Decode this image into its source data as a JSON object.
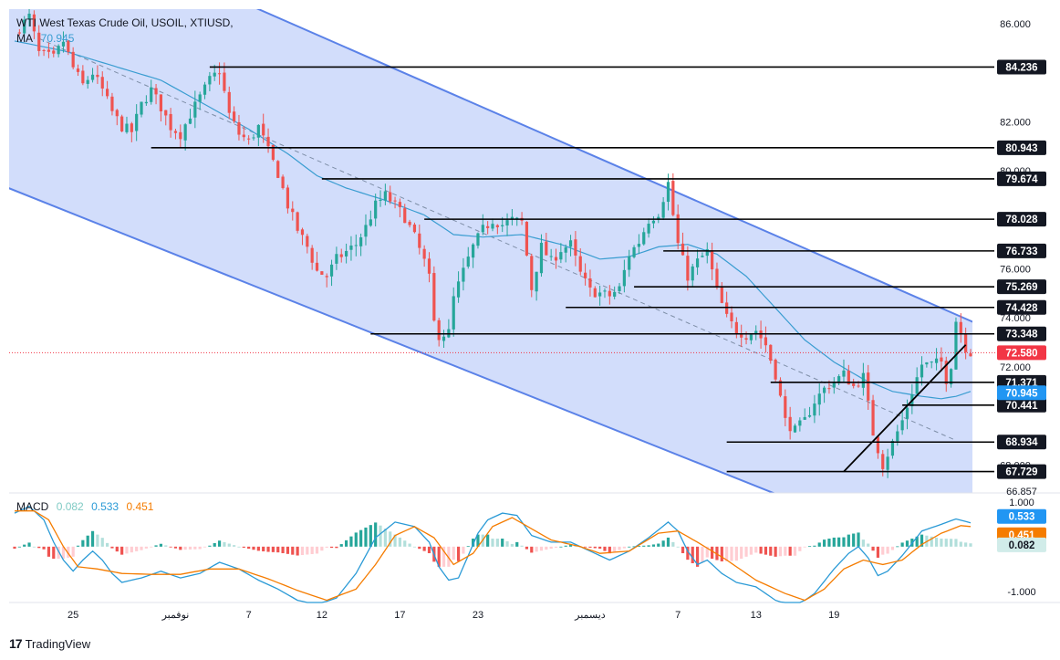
{
  "header": {
    "symbol": "WTI West Texas Crude Oil, USOIL, XTIUSD,",
    "ma_label": "MA",
    "ma_value": "70.945"
  },
  "macd_header": {
    "label": "MACD",
    "histogram": "0.082",
    "macd": "0.533",
    "signal": "0.451"
  },
  "footer": {
    "logo_text": "TradingView"
  },
  "colors": {
    "up": "#26a69a",
    "down": "#ef5350",
    "channel_fill": "#cdd9fb",
    "channel_line": "#5b82e8",
    "ma": "#3a9dd1",
    "macd_line": "#2a9ad6",
    "signal_line": "#f57c00",
    "hist_up_strong": "#26a69a",
    "hist_up_weak": "#b2dfdb",
    "hist_down_strong": "#ef5350",
    "hist_down_weak": "#ffcdd2",
    "price_tag": "#f23645"
  },
  "chart_data": [
    {
      "type": "candlestick",
      "symbol": "USOIL",
      "y_ticks": [
        "86.000",
        "82.000",
        "80.000",
        "76.000",
        "74.000",
        "72.000",
        "68.000"
      ],
      "ylim": [
        66.857,
        86.6
      ],
      "x_ticks": [
        "25",
        "نوفمبر",
        "7",
        "12",
        "17",
        "23",
        "ديسمبر",
        "7",
        "13",
        "19"
      ],
      "current_price": "72.580",
      "ma_value_label": "70.945",
      "bottom_clip_label": "66.857",
      "levels": [
        {
          "price": 84.236,
          "label": "84.236",
          "from_index": 40,
          "to_index": 205
        },
        {
          "price": 80.943,
          "label": "80.943",
          "from_index": 28,
          "to_index": 205
        },
        {
          "price": 79.674,
          "label": "79.674",
          "from_index": 63,
          "to_index": 205
        },
        {
          "price": 78.028,
          "label": "78.028",
          "from_index": 84,
          "to_index": 205
        },
        {
          "price": 76.733,
          "label": "76.733",
          "from_index": 133,
          "to_index": 205
        },
        {
          "price": 75.269,
          "label": "75.269",
          "from_index": 127,
          "to_index": 205
        },
        {
          "price": 74.428,
          "label": "74.428",
          "from_index": 113,
          "to_index": 205
        },
        {
          "price": 73.348,
          "label": "73.348",
          "from_index": 73,
          "to_index": 205
        },
        {
          "price": 71.371,
          "label": "71.371",
          "from_index": 155,
          "to_index": 205
        },
        {
          "price": 70.441,
          "label": "70.441",
          "from_index": 182,
          "to_index": 205
        },
        {
          "price": 68.934,
          "label": "68.934",
          "from_index": 146,
          "to_index": 205
        },
        {
          "price": 67.729,
          "label": "67.729",
          "from_index": 146,
          "to_index": 205
        }
      ],
      "channel": {
        "upper": [
          [
            50,
            86.6
          ],
          [
            190,
            74.4
          ]
        ],
        "lower": [
          [
            0,
            79.2
          ],
          [
            155,
            66.9
          ]
        ],
        "mid": [
          [
            5,
            85.4
          ],
          [
            193,
            69.0
          ]
        ]
      },
      "trendline": [
        [
          170,
          67.729
        ],
        [
          195,
          72.9
        ]
      ],
      "price_anchors": [
        [
          0,
          85.6
        ],
        [
          3,
          86.3
        ],
        [
          5,
          84.8
        ],
        [
          8,
          84.6
        ],
        [
          10,
          85.3
        ],
        [
          12,
          84.2
        ],
        [
          14,
          83.5
        ],
        [
          16,
          84.0
        ],
        [
          18,
          83.3
        ],
        [
          20,
          82.4
        ],
        [
          22,
          81.8
        ],
        [
          24,
          81.6
        ],
        [
          26,
          82.7
        ],
        [
          28,
          83.3
        ],
        [
          30,
          82.6
        ],
        [
          32,
          81.8
        ],
        [
          34,
          81.5
        ],
        [
          36,
          82.3
        ],
        [
          38,
          83.0
        ],
        [
          40,
          83.7
        ],
        [
          42,
          84.1
        ],
        [
          44,
          82.3
        ],
        [
          46,
          81.5
        ],
        [
          48,
          81.2
        ],
        [
          50,
          81.8
        ],
        [
          52,
          80.8
        ],
        [
          54,
          79.9
        ],
        [
          56,
          78.6
        ],
        [
          58,
          77.6
        ],
        [
          60,
          76.9
        ],
        [
          62,
          75.9
        ],
        [
          64,
          75.7
        ],
        [
          66,
          76.4
        ],
        [
          68,
          76.7
        ],
        [
          70,
          77.0
        ],
        [
          72,
          77.7
        ],
        [
          74,
          78.6
        ],
        [
          76,
          79.0
        ],
        [
          78,
          78.6
        ],
        [
          80,
          78.1
        ],
        [
          82,
          77.3
        ],
        [
          84,
          76.3
        ],
        [
          85,
          75.6
        ],
        [
          86,
          73.8
        ],
        [
          87,
          73.3
        ],
        [
          89,
          73.4
        ],
        [
          90,
          74.8
        ],
        [
          92,
          75.9
        ],
        [
          94,
          76.9
        ],
        [
          96,
          77.6
        ],
        [
          98,
          78.0
        ],
        [
          100,
          77.8
        ],
        [
          102,
          78.0
        ],
        [
          104,
          77.9
        ],
        [
          106,
          75.2
        ],
        [
          108,
          76.9
        ],
        [
          110,
          76.3
        ],
        [
          112,
          76.8
        ],
        [
          114,
          77.0
        ],
        [
          116,
          75.8
        ],
        [
          118,
          75.1
        ],
        [
          120,
          75.0
        ],
        [
          122,
          74.9
        ],
        [
          124,
          75.2
        ],
        [
          126,
          76.6
        ],
        [
          128,
          77.1
        ],
        [
          130,
          78.0
        ],
        [
          132,
          78.3
        ],
        [
          134,
          79.5
        ],
        [
          135,
          78.2
        ],
        [
          136,
          77.0
        ],
        [
          138,
          75.7
        ],
        [
          140,
          76.3
        ],
        [
          142,
          76.7
        ],
        [
          144,
          75.1
        ],
        [
          146,
          74.0
        ],
        [
          148,
          73.5
        ],
        [
          150,
          73.3
        ],
        [
          152,
          73.5
        ],
        [
          154,
          72.9
        ],
        [
          156,
          71.7
        ],
        [
          158,
          69.8
        ],
        [
          160,
          69.4
        ],
        [
          162,
          69.8
        ],
        [
          164,
          70.6
        ],
        [
          166,
          71.1
        ],
        [
          168,
          71.4
        ],
        [
          170,
          71.7
        ],
        [
          172,
          71.2
        ],
        [
          174,
          71.6
        ],
        [
          176,
          69.3
        ],
        [
          178,
          68.0
        ],
        [
          180,
          68.9
        ],
        [
          182,
          69.8
        ],
        [
          184,
          71.0
        ],
        [
          186,
          72.1
        ],
        [
          188,
          72.1
        ],
        [
          190,
          72.2
        ],
        [
          191,
          71.5
        ],
        [
          192,
          72.1
        ],
        [
          193,
          73.9
        ],
        [
          194,
          73.4
        ],
        [
          195,
          72.8
        ],
        [
          196,
          72.6
        ]
      ],
      "ma_anchors": [
        [
          0,
          85.3
        ],
        [
          10,
          84.9
        ],
        [
          20,
          84.3
        ],
        [
          30,
          83.7
        ],
        [
          40,
          82.6
        ],
        [
          48,
          81.7
        ],
        [
          56,
          80.7
        ],
        [
          62,
          79.8
        ],
        [
          68,
          79.3
        ],
        [
          76,
          78.8
        ],
        [
          84,
          78.2
        ],
        [
          90,
          77.4
        ],
        [
          96,
          77.3
        ],
        [
          104,
          77.4
        ],
        [
          112,
          77.0
        ],
        [
          120,
          76.4
        ],
        [
          126,
          76.5
        ],
        [
          132,
          76.9
        ],
        [
          138,
          77.0
        ],
        [
          144,
          76.6
        ],
        [
          150,
          75.7
        ],
        [
          156,
          74.4
        ],
        [
          162,
          73.1
        ],
        [
          168,
          72.2
        ],
        [
          174,
          71.5
        ],
        [
          180,
          71.0
        ],
        [
          186,
          70.8
        ],
        [
          190,
          70.7
        ],
        [
          193,
          70.8
        ],
        [
          196,
          71.0
        ]
      ]
    },
    {
      "type": "macd",
      "y_ticks": [
        "1.000",
        "-1.000"
      ],
      "ylim": [
        -1.25,
        1.1
      ],
      "current": {
        "macd": "0.533",
        "signal": "0.451",
        "histogram": "0.082"
      },
      "macd_anchors": [
        [
          0,
          0.75
        ],
        [
          3,
          0.9
        ],
        [
          6,
          0.6
        ],
        [
          8,
          0.1
        ],
        [
          10,
          -0.3
        ],
        [
          12,
          -0.55
        ],
        [
          14,
          -0.3
        ],
        [
          16,
          -0.1
        ],
        [
          18,
          -0.3
        ],
        [
          20,
          -0.6
        ],
        [
          22,
          -0.8
        ],
        [
          26,
          -0.7
        ],
        [
          30,
          -0.55
        ],
        [
          34,
          -0.7
        ],
        [
          38,
          -0.6
        ],
        [
          42,
          -0.35
        ],
        [
          46,
          -0.5
        ],
        [
          50,
          -0.75
        ],
        [
          54,
          -0.95
        ],
        [
          58,
          -1.2
        ],
        [
          62,
          -1.3
        ],
        [
          66,
          -1.15
        ],
        [
          70,
          -0.6
        ],
        [
          74,
          0.2
        ],
        [
          78,
          0.55
        ],
        [
          82,
          0.45
        ],
        [
          85,
          0.1
        ],
        [
          87,
          -0.45
        ],
        [
          89,
          -0.75
        ],
        [
          91,
          -0.7
        ],
        [
          93,
          -0.2
        ],
        [
          95,
          0.3
        ],
        [
          97,
          0.6
        ],
        [
          100,
          0.75
        ],
        [
          103,
          0.7
        ],
        [
          106,
          0.25
        ],
        [
          110,
          0.1
        ],
        [
          114,
          0.1
        ],
        [
          118,
          -0.1
        ],
        [
          122,
          -0.3
        ],
        [
          126,
          -0.1
        ],
        [
          130,
          0.2
        ],
        [
          134,
          0.55
        ],
        [
          136,
          0.35
        ],
        [
          138,
          -0.1
        ],
        [
          140,
          -0.4
        ],
        [
          142,
          -0.3
        ],
        [
          145,
          -0.6
        ],
        [
          148,
          -0.8
        ],
        [
          152,
          -0.9
        ],
        [
          156,
          -1.2
        ],
        [
          160,
          -1.35
        ],
        [
          164,
          -1.05
        ],
        [
          168,
          -0.5
        ],
        [
          171,
          -0.15
        ],
        [
          173,
          0.0
        ],
        [
          175,
          -0.25
        ],
        [
          177,
          -0.65
        ],
        [
          179,
          -0.55
        ],
        [
          182,
          -0.2
        ],
        [
          186,
          0.35
        ],
        [
          190,
          0.5
        ],
        [
          193,
          0.62
        ],
        [
          196,
          0.533
        ]
      ],
      "signal_anchors": [
        [
          0,
          0.8
        ],
        [
          4,
          0.8
        ],
        [
          7,
          0.6
        ],
        [
          10,
          0.0
        ],
        [
          13,
          -0.45
        ],
        [
          17,
          -0.5
        ],
        [
          22,
          -0.6
        ],
        [
          28,
          -0.62
        ],
        [
          34,
          -0.62
        ],
        [
          40,
          -0.5
        ],
        [
          46,
          -0.5
        ],
        [
          52,
          -0.72
        ],
        [
          58,
          -0.98
        ],
        [
          64,
          -1.2
        ],
        [
          70,
          -0.95
        ],
        [
          74,
          -0.4
        ],
        [
          78,
          0.25
        ],
        [
          82,
          0.45
        ],
        [
          86,
          0.2
        ],
        [
          90,
          -0.4
        ],
        [
          94,
          -0.15
        ],
        [
          98,
          0.45
        ],
        [
          102,
          0.65
        ],
        [
          106,
          0.4
        ],
        [
          110,
          0.15
        ],
        [
          116,
          0.0
        ],
        [
          120,
          -0.15
        ],
        [
          126,
          -0.1
        ],
        [
          132,
          0.3
        ],
        [
          136,
          0.35
        ],
        [
          140,
          0.1
        ],
        [
          146,
          -0.3
        ],
        [
          152,
          -0.75
        ],
        [
          158,
          -1.05
        ],
        [
          162,
          -1.2
        ],
        [
          166,
          -0.95
        ],
        [
          170,
          -0.5
        ],
        [
          174,
          -0.3
        ],
        [
          178,
          -0.4
        ],
        [
          182,
          -0.3
        ],
        [
          186,
          0.05
        ],
        [
          190,
          0.3
        ],
        [
          194,
          0.47
        ],
        [
          196,
          0.451
        ]
      ]
    }
  ]
}
